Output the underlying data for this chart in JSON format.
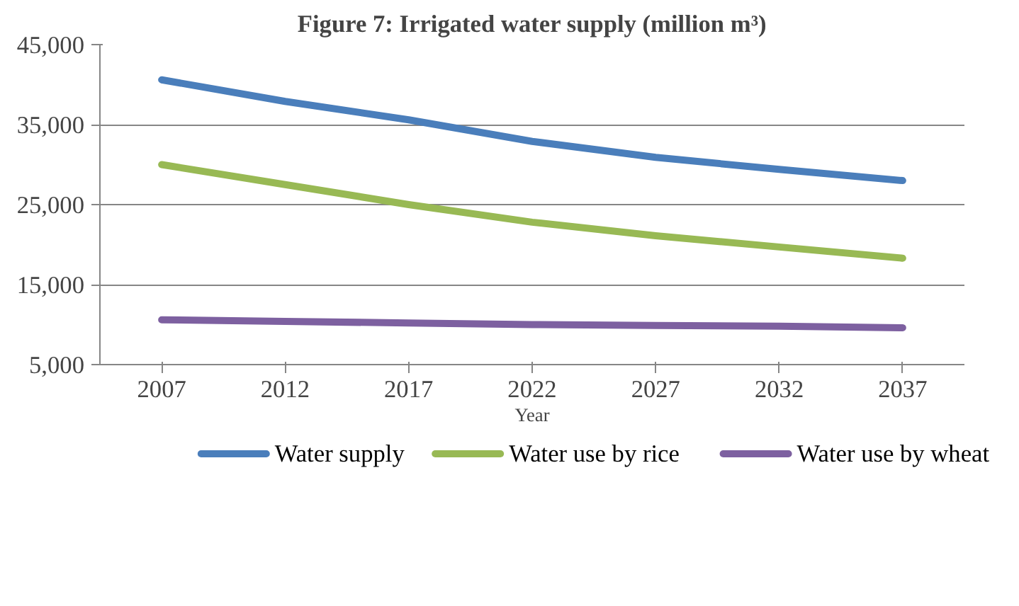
{
  "chart_data": {
    "type": "line",
    "title": "Figure 7: Irrigated water supply (million m³)",
    "xlabel": "Year",
    "categories": [
      "2007",
      "2012",
      "2017",
      "2022",
      "2027",
      "2032",
      "2037"
    ],
    "ylim": [
      5000,
      45000
    ],
    "yticks": [
      {
        "value": 5000,
        "label": "5,000"
      },
      {
        "value": 15000,
        "label": "15,000"
      },
      {
        "value": 25000,
        "label": "25,000"
      },
      {
        "value": 35000,
        "label": "35,000"
      },
      {
        "value": 45000,
        "label": "45,000"
      }
    ],
    "grid": "y",
    "legend": "bottom",
    "marker": "none",
    "line_style": "solid",
    "series": [
      {
        "name": "Water supply",
        "color": "#4a7ebb",
        "values": [
          40600,
          37900,
          35600,
          32900,
          30900,
          29400,
          28000
        ]
      },
      {
        "name": "Water use by rice",
        "color": "#98b954",
        "values": [
          30000,
          27500,
          25000,
          22800,
          21100,
          19700,
          18300
        ]
      },
      {
        "name": "Water use by wheat",
        "color": "#7d60a0",
        "values": [
          10600,
          10400,
          10200,
          10000,
          9900,
          9800,
          9600
        ]
      }
    ]
  }
}
